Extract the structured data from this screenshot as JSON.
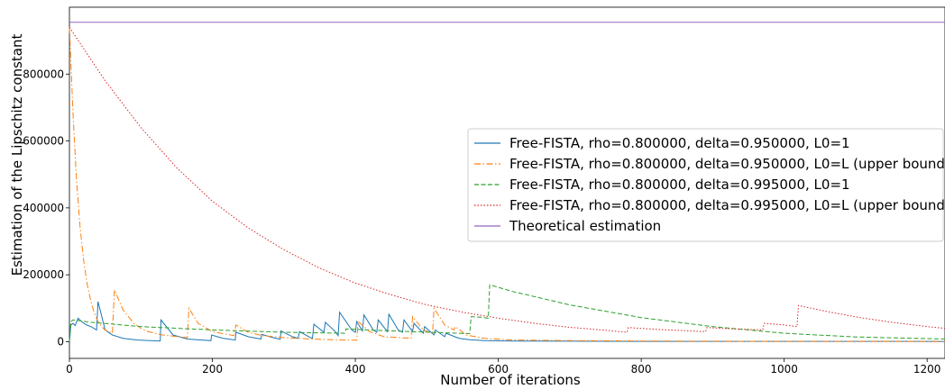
{
  "chart_data": {
    "type": "line",
    "title": "",
    "xlabel": "Number of iterations",
    "ylabel": "Estimation of the Lipschitz constant",
    "xlim": [
      0,
      1225
    ],
    "ylim": [
      -50000,
      1000000
    ],
    "x_ticks": [
      0,
      200,
      400,
      600,
      800,
      1000,
      1200
    ],
    "y_ticks": [
      0,
      200000,
      400000,
      600000,
      800000
    ],
    "grid": false,
    "legend_position": "center-right",
    "series": [
      {
        "name": "Free-FISTA, rho=0.800000, delta=0.950000, L0=1",
        "color": "#1f77b4",
        "dash": "solid",
        "points": [
          [
            0,
            0
          ],
          [
            2,
            50000
          ],
          [
            5,
            55000
          ],
          [
            8,
            48000
          ],
          [
            12,
            70000
          ],
          [
            18,
            58000
          ],
          [
            24,
            50000
          ],
          [
            30,
            45000
          ],
          [
            38,
            35000
          ],
          [
            40,
            120000
          ],
          [
            50,
            35000
          ],
          [
            60,
            20000
          ],
          [
            75,
            10000
          ],
          [
            95,
            5000
          ],
          [
            127,
            2000
          ],
          [
            128,
            65000
          ],
          [
            145,
            20000
          ],
          [
            165,
            8000
          ],
          [
            185,
            5000
          ],
          [
            198,
            3000
          ],
          [
            199,
            20000
          ],
          [
            215,
            10000
          ],
          [
            232,
            5000
          ],
          [
            233,
            28000
          ],
          [
            250,
            15000
          ],
          [
            268,
            8000
          ],
          [
            269,
            22000
          ],
          [
            285,
            12000
          ],
          [
            295,
            7000
          ],
          [
            296,
            32000
          ],
          [
            312,
            15000
          ],
          [
            320,
            10000
          ],
          [
            322,
            30000
          ],
          [
            335,
            15000
          ],
          [
            340,
            10000
          ],
          [
            342,
            52000
          ],
          [
            356,
            28000
          ],
          [
            358,
            58000
          ],
          [
            372,
            30000
          ],
          [
            376,
            18000
          ],
          [
            378,
            88000
          ],
          [
            395,
            35000
          ],
          [
            400,
            28000
          ],
          [
            402,
            60000
          ],
          [
            410,
            32000
          ],
          [
            412,
            80000
          ],
          [
            425,
            35000
          ],
          [
            430,
            28000
          ],
          [
            432,
            65000
          ],
          [
            445,
            30000
          ],
          [
            447,
            82000
          ],
          [
            460,
            35000
          ],
          [
            466,
            28000
          ],
          [
            468,
            65000
          ],
          [
            480,
            30000
          ],
          [
            482,
            55000
          ],
          [
            495,
            25000
          ],
          [
            497,
            45000
          ],
          [
            510,
            20000
          ],
          [
            512,
            35000
          ],
          [
            525,
            15000
          ],
          [
            527,
            25000
          ],
          [
            545,
            10000
          ],
          [
            560,
            6000
          ],
          [
            580,
            3000
          ],
          [
            620,
            2000
          ],
          [
            700,
            1500
          ],
          [
            800,
            1000
          ],
          [
            1000,
            800
          ],
          [
            1225,
            500
          ]
        ]
      },
      {
        "name": "Free-FISTA, rho=0.800000, delta=0.950000, L0=L (upper bound)",
        "color": "#ff7f0e",
        "dash": "dashdot",
        "points": [
          [
            0,
            940000
          ],
          [
            5,
            680000
          ],
          [
            10,
            480000
          ],
          [
            15,
            340000
          ],
          [
            20,
            240000
          ],
          [
            25,
            170000
          ],
          [
            30,
            120000
          ],
          [
            35,
            85000
          ],
          [
            40,
            60000
          ],
          [
            45,
            45000
          ],
          [
            50,
            35000
          ],
          [
            55,
            30000
          ],
          [
            60,
            25000
          ],
          [
            63,
            155000
          ],
          [
            75,
            95000
          ],
          [
            90,
            55000
          ],
          [
            100,
            40000
          ],
          [
            110,
            30000
          ],
          [
            120,
            25000
          ],
          [
            130,
            20000
          ],
          [
            165,
            12000
          ],
          [
            167,
            100000
          ],
          [
            180,
            55000
          ],
          [
            200,
            30000
          ],
          [
            230,
            18000
          ],
          [
            233,
            50000
          ],
          [
            250,
            28000
          ],
          [
            270,
            18000
          ],
          [
            300,
            12000
          ],
          [
            340,
            8000
          ],
          [
            380,
            5000
          ],
          [
            402,
            4000
          ],
          [
            404,
            60000
          ],
          [
            420,
            30000
          ],
          [
            440,
            15000
          ],
          [
            478,
            10000
          ],
          [
            480,
            75000
          ],
          [
            495,
            35000
          ],
          [
            508,
            25000
          ],
          [
            510,
            100000
          ],
          [
            525,
            50000
          ],
          [
            538,
            35000
          ],
          [
            540,
            45000
          ],
          [
            555,
            20000
          ],
          [
            580,
            10000
          ],
          [
            620,
            5000
          ],
          [
            700,
            3000
          ],
          [
            800,
            2000
          ],
          [
            1000,
            1000
          ],
          [
            1225,
            500
          ]
        ]
      },
      {
        "name": "Free-FISTA, rho=0.800000, delta=0.995000, L0=1",
        "color": "#2ca02c",
        "dash": "dashed",
        "points": [
          [
            0,
            0
          ],
          [
            2,
            60000
          ],
          [
            5,
            65000
          ],
          [
            30,
            58000
          ],
          [
            100,
            45000
          ],
          [
            200,
            35000
          ],
          [
            300,
            28000
          ],
          [
            385,
            25000
          ],
          [
            387,
            38000
          ],
          [
            450,
            32000
          ],
          [
            520,
            27000
          ],
          [
            560,
            24000
          ],
          [
            562,
            75000
          ],
          [
            575,
            73000
          ],
          [
            586,
            70000
          ],
          [
            588,
            170000
          ],
          [
            620,
            150000
          ],
          [
            700,
            110000
          ],
          [
            800,
            72000
          ],
          [
            900,
            45000
          ],
          [
            1000,
            25000
          ],
          [
            1100,
            14000
          ],
          [
            1225,
            8000
          ]
        ]
      },
      {
        "name": "Free-FISTA, rho=0.800000, delta=0.995000, L0=L (upper bound)",
        "color": "#d62728",
        "dash": "dotted",
        "points": [
          [
            0,
            940000
          ],
          [
            50,
            780000
          ],
          [
            100,
            640000
          ],
          [
            150,
            520000
          ],
          [
            200,
            420000
          ],
          [
            250,
            340000
          ],
          [
            300,
            275000
          ],
          [
            350,
            220000
          ],
          [
            400,
            175000
          ],
          [
            450,
            140000
          ],
          [
            500,
            110000
          ],
          [
            550,
            88000
          ],
          [
            600,
            70000
          ],
          [
            650,
            55000
          ],
          [
            700,
            43000
          ],
          [
            750,
            34000
          ],
          [
            780,
            28000
          ],
          [
            782,
            42000
          ],
          [
            830,
            36000
          ],
          [
            890,
            30000
          ],
          [
            892,
            42000
          ],
          [
            930,
            38000
          ],
          [
            970,
            35000
          ],
          [
            972,
            55000
          ],
          [
            1000,
            50000
          ],
          [
            1018,
            45000
          ],
          [
            1020,
            108000
          ],
          [
            1060,
            90000
          ],
          [
            1100,
            74000
          ],
          [
            1150,
            58000
          ],
          [
            1200,
            45000
          ],
          [
            1225,
            40000
          ]
        ]
      },
      {
        "name": "Theoretical estimation",
        "color": "#9467bd",
        "dash": "solid",
        "points": [
          [
            0,
            955000
          ],
          [
            1225,
            955000
          ]
        ]
      }
    ]
  }
}
